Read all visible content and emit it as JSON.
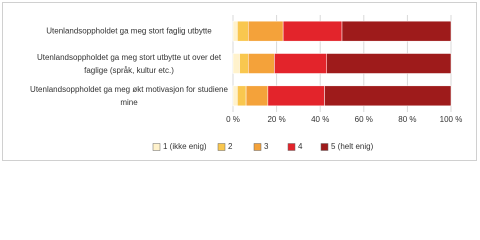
{
  "chart_data": {
    "type": "stacked-bar-horizontal",
    "categories": [
      "Utenlandsoppholdet ga meg stort faglig utbytte",
      "Utenlandsoppholdet ga meg stort utbytte ut over det faglige (språk, kultur etc.)",
      "Utenlandsoppholdet ga meg økt motivasjon for studiene mine"
    ],
    "series": [
      {
        "name": "1 (ikke enig)",
        "color": "#fff2cc",
        "values": [
          2,
          3,
          2
        ]
      },
      {
        "name": "2",
        "color": "#f9c74f",
        "values": [
          5,
          4,
          4
        ]
      },
      {
        "name": "3",
        "color": "#f4a23a",
        "values": [
          16,
          12,
          10
        ]
      },
      {
        "name": "4",
        "color": "#e3242b",
        "values": [
          27,
          24,
          26
        ]
      },
      {
        "name": "5 (helt enig)",
        "color": "#9e1b1b",
        "values": [
          50,
          57,
          58
        ]
      }
    ],
    "xlim": [
      0,
      100
    ],
    "xticks": [
      {
        "value": 0,
        "label": "0 %"
      },
      {
        "value": 20,
        "label": "20 %"
      },
      {
        "value": 40,
        "label": "40 %"
      },
      {
        "value": 60,
        "label": "60 %"
      },
      {
        "value": 80,
        "label": "80 %"
      },
      {
        "value": 100,
        "label": "100 %"
      }
    ],
    "grid": true,
    "legend": "bottom"
  }
}
